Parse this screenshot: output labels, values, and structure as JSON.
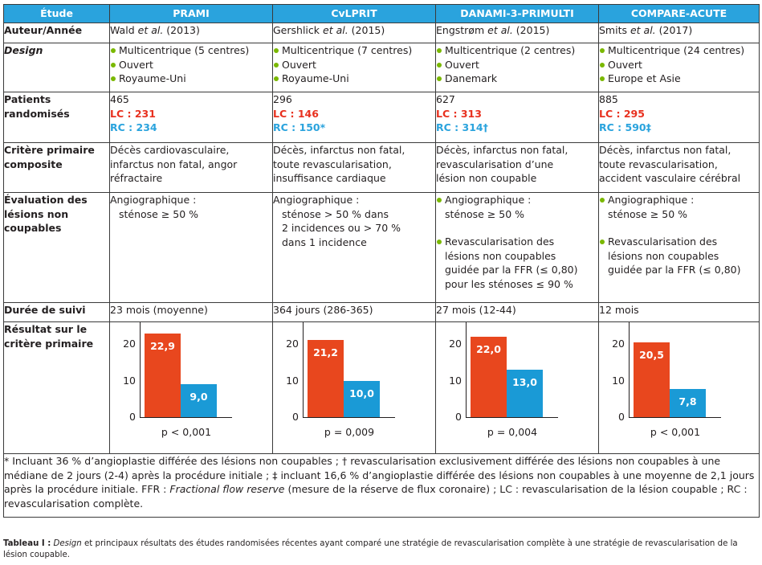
{
  "header": {
    "etude": "Étude",
    "studies": [
      "PRAMI",
      "CvLPRIT",
      "DANAMI-3-PRIMULTI",
      "COMPARE-ACUTE"
    ]
  },
  "rows": {
    "auteur_label": "Auteur/Année",
    "design_label": "Design",
    "patients_label_1": "Patients",
    "patients_label_2": "randomisés",
    "critere_label_1": "Critère primaire",
    "critere_label_2": "composite",
    "evaluation_label_1": "Évaluation des",
    "evaluation_label_2": "lésions non",
    "evaluation_label_3": "coupables",
    "duree_label": "Durée de suivi",
    "resultat_label_1": "Résultat sur le",
    "resultat_label_2": "critère primaire"
  },
  "studies": [
    {
      "author": "Wald",
      "etal": "et al.",
      "year": "(2013)",
      "design": [
        "Multicentrique (5 centres)",
        "Ouvert",
        "Royaume-Uni"
      ],
      "patients_total": "465",
      "lc": "LC : 231",
      "rc": "RC : 234",
      "critere": [
        "Décès cardiovasculaire,",
        "infarctus non fatal, angor",
        "réfractaire"
      ],
      "evaluation": [
        "Angiographique :",
        "sténose ≥ 50 %"
      ],
      "duree": "23 mois (moyenne)"
    },
    {
      "author": "Gershlick",
      "etal": "et al.",
      "year": "(2015)",
      "design": [
        "Multicentrique (7 centres)",
        "Ouvert",
        "Royaume-Uni"
      ],
      "patients_total": "296",
      "lc": "LC : 146",
      "rc": "RC : 150*",
      "critere": [
        "Décès, infarctus non fatal,",
        "toute revascularisation,",
        "insuffisance cardiaque"
      ],
      "evaluation": [
        "Angiographique :",
        "sténose > 50 % dans",
        "2 incidences ou > 70 %",
        "dans 1 incidence"
      ],
      "duree": "364 jours (286-365)"
    },
    {
      "author": "Engstrøm",
      "etal": "et al.",
      "year": "(2015)",
      "design": [
        "Multicentrique (2 centres)",
        "Ouvert",
        "Danemark"
      ],
      "patients_total": "627",
      "lc": "LC : 313",
      "rc": "RC : 314†",
      "critere": [
        "Décès, infarctus non fatal,",
        "revascularisation d’une",
        "lésion non coupable"
      ],
      "evaluation_b1": [
        "Angiographique :",
        "sténose ≥ 50 %"
      ],
      "evaluation_b2": [
        "Revascularisation des",
        "lésions non coupables",
        "guidée par la FFR (≤ 0,80)",
        "pour les sténoses ≤ 90 %"
      ],
      "duree": "27 mois (12-44)"
    },
    {
      "author": "Smits",
      "etal": "et al.",
      "year": "(2017)",
      "design": [
        "Multicentrique (24 centres)",
        "Ouvert",
        "Europe et Asie"
      ],
      "patients_total": "885",
      "lc": "LC : 295",
      "rc": "RC : 590‡",
      "critere": [
        "Décès, infarctus non fatal,",
        "toute revascularisation,",
        "accident vasculaire cérébral"
      ],
      "evaluation_b1": [
        "Angiographique :",
        "sténose ≥ 50 %"
      ],
      "evaluation_b2": [
        "Revascularisation des",
        "lésions non coupables",
        "guidée par la FFR (≤ 0,80)"
      ],
      "duree": "12 mois"
    }
  ],
  "chart_data": [
    {
      "type": "bar",
      "title": "PRAMI",
      "categories": [
        "LC",
        "RC"
      ],
      "values": [
        22.9,
        9.0
      ],
      "labels": [
        "22,9",
        "9,0"
      ],
      "ylim": [
        0,
        26
      ],
      "yticks": [
        "0",
        "10",
        "20"
      ],
      "pvalue": "p < 0,001",
      "colors": [
        "#e8471e",
        "#1a9ad6"
      ]
    },
    {
      "type": "bar",
      "title": "CvLPRIT",
      "categories": [
        "LC",
        "RC"
      ],
      "values": [
        21.2,
        10.0
      ],
      "labels": [
        "21,2",
        "10,0"
      ],
      "ylim": [
        0,
        26
      ],
      "yticks": [
        "0",
        "10",
        "20"
      ],
      "pvalue": "p = 0,009",
      "colors": [
        "#e8471e",
        "#1a9ad6"
      ]
    },
    {
      "type": "bar",
      "title": "DANAMI-3-PRIMULTI",
      "categories": [
        "LC",
        "RC"
      ],
      "values": [
        22.0,
        13.0
      ],
      "labels": [
        "22,0",
        "13,0"
      ],
      "ylim": [
        0,
        26
      ],
      "yticks": [
        "0",
        "10",
        "20"
      ],
      "pvalue": "p = 0,004",
      "colors": [
        "#e8471e",
        "#1a9ad6"
      ]
    },
    {
      "type": "bar",
      "title": "COMPARE-ACUTE",
      "categories": [
        "LC",
        "RC"
      ],
      "values": [
        20.5,
        7.8
      ],
      "labels": [
        "20,5",
        "7,8"
      ],
      "ylim": [
        0,
        26
      ],
      "yticks": [
        "0",
        "10",
        "20"
      ],
      "pvalue": "p < 0,001",
      "colors": [
        "#e8471e",
        "#1a9ad6"
      ]
    }
  ],
  "footnote": {
    "part1": "* Incluant 36 % d’angioplastie différée des lésions non coupables ; † revascularisation exclusivement différée des lésions non coupables à une médiane de 2 jours (2-4) après la procédure initiale ; ‡ incluant 16,6 % d’angioplastie différée des lésions non coupables à une moyenne de 2,1 jours après la procédure initiale. FFR : ",
    "italic": "Fractional flow reserve",
    "part2": " (mesure de la réserve de flux coronaire) ; LC : revascularisation de la lésion coupable ; RC : revascularisation complète."
  },
  "caption": {
    "label": "Tableau I :",
    "italic": "Design",
    "text": " et principaux résultats des études randomisées récentes ayant comparé une stratégie de revascularisation complète à une stratégie de revascularisation de la lésion coupable."
  },
  "colors": {
    "header": "#2aa3dd",
    "lc": "#e8311f",
    "rc": "#2aa3dd",
    "bullet": "#7ab800",
    "bar_lc": "#e8471e",
    "bar_rc": "#1a9ad6"
  }
}
